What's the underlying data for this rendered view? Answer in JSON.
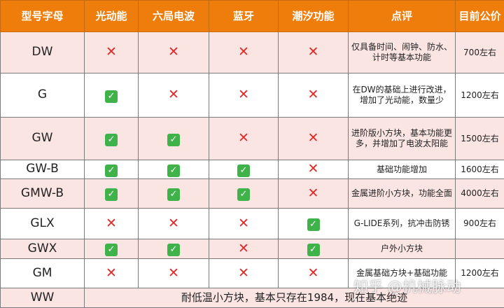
{
  "headers": [
    "型号字母",
    "光动能",
    "六局电波",
    "蓝牙",
    "潮汐功能",
    "点评",
    "目前公价"
  ],
  "marks": {
    "yes": "✓",
    "no": "✕"
  },
  "rows": [
    {
      "model": "DW",
      "f": [
        "no",
        "no",
        "no",
        "no"
      ],
      "note": "仅具备时间、闹钟、防水、计时等基本功能",
      "price": "700左右"
    },
    {
      "model": "G",
      "f": [
        "yes",
        "no",
        "no",
        "no"
      ],
      "note": "在DW的基础上进行改进，增加了光动能，数量少",
      "price": "1200左右"
    },
    {
      "model": "GW",
      "f": [
        "yes",
        "yes",
        "no",
        "no"
      ],
      "note": "进阶版小方块，基本功能更多，并增加了电波太阳能",
      "price": "1500左右"
    },
    {
      "model": "GW-B",
      "f": [
        "yes",
        "yes",
        "yes",
        "no"
      ],
      "note": "基础功能增加",
      "price": "1600左右"
    },
    {
      "model": "GMW-B",
      "f": [
        "yes",
        "yes",
        "yes",
        "no"
      ],
      "note": "金属进阶小方块，功能全面",
      "price": "4000左右"
    },
    {
      "model": "GLX",
      "f": [
        "no",
        "no",
        "no",
        "yes"
      ],
      "note": "G-LIDE系列，抗冲击防锈",
      "price": "900左右"
    },
    {
      "model": "GWX",
      "f": [
        "yes",
        "yes",
        "no",
        "yes"
      ],
      "note": "户外小方块",
      "price": ""
    },
    {
      "model": "GM",
      "f": [
        "no",
        "no",
        "no",
        "no"
      ],
      "note": "金属基础方块+基础功能",
      "price": "1200左右"
    }
  ],
  "last": {
    "model": "WW",
    "note": "耐低温小方块，基本只存在1984，现在基本绝迹"
  },
  "watermark": "知乎 @机械脉动"
}
